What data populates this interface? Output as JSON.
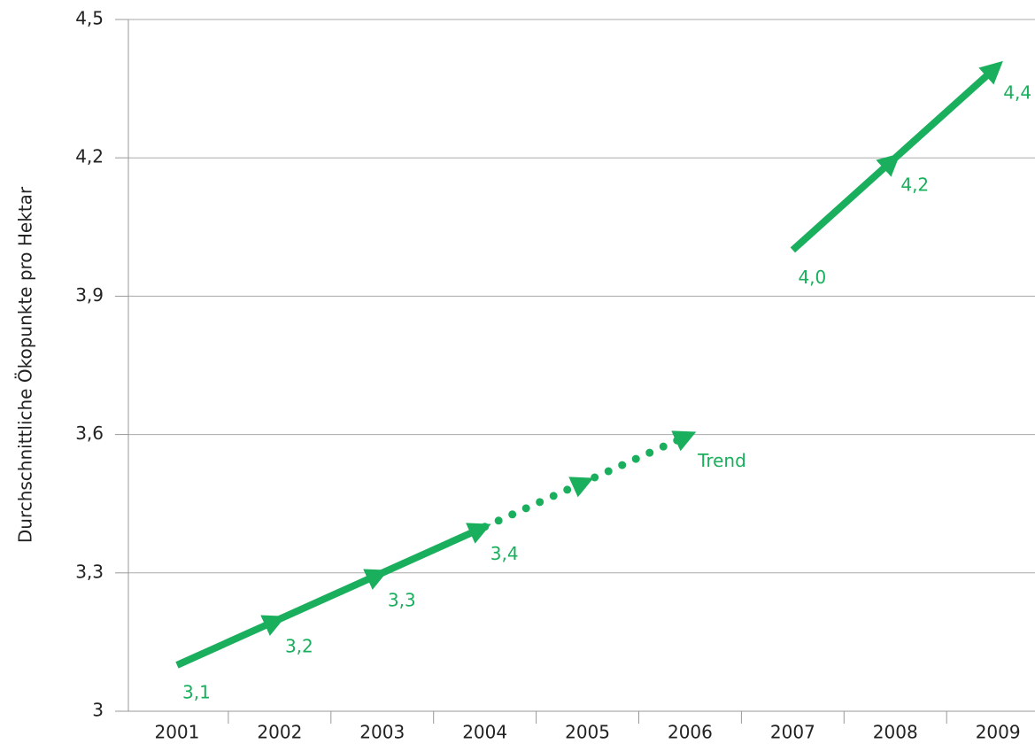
{
  "chart_data": {
    "type": "line",
    "y_label": "Durchschnittliche Ökopunkte pro Hektar",
    "categories": [
      "2001",
      "2002",
      "2003",
      "2004",
      "2005",
      "2006",
      "2007",
      "2008",
      "2009"
    ],
    "series": [
      {
        "color": "#1aaf5d",
        "style": "solid",
        "values": [
          3.1,
          3.2,
          3.3,
          3.4,
          null,
          null,
          4.0,
          4.2,
          4.4
        ],
        "value_labels": [
          "3,1",
          "3,2",
          "3,3",
          "3,4",
          null,
          null,
          "4,0",
          "4,2",
          "4,4"
        ]
      },
      {
        "name": "Trend",
        "color": "#1aaf5d",
        "style": "dotted",
        "values": [
          null,
          null,
          null,
          3.4,
          3.5,
          3.6,
          null,
          null,
          null
        ]
      }
    ],
    "ylim": [
      3,
      4.5
    ],
    "yticks": [
      3,
      {
        "value": 3.3,
        "label": "3,3"
      },
      {
        "value": 3.6,
        "label": "3,6"
      },
      {
        "value": 3.9,
        "label": "3,9"
      },
      {
        "value": 4.2,
        "label": "4,2"
      },
      {
        "value": 4.5,
        "label": "4,5"
      }
    ],
    "grid": true
  }
}
